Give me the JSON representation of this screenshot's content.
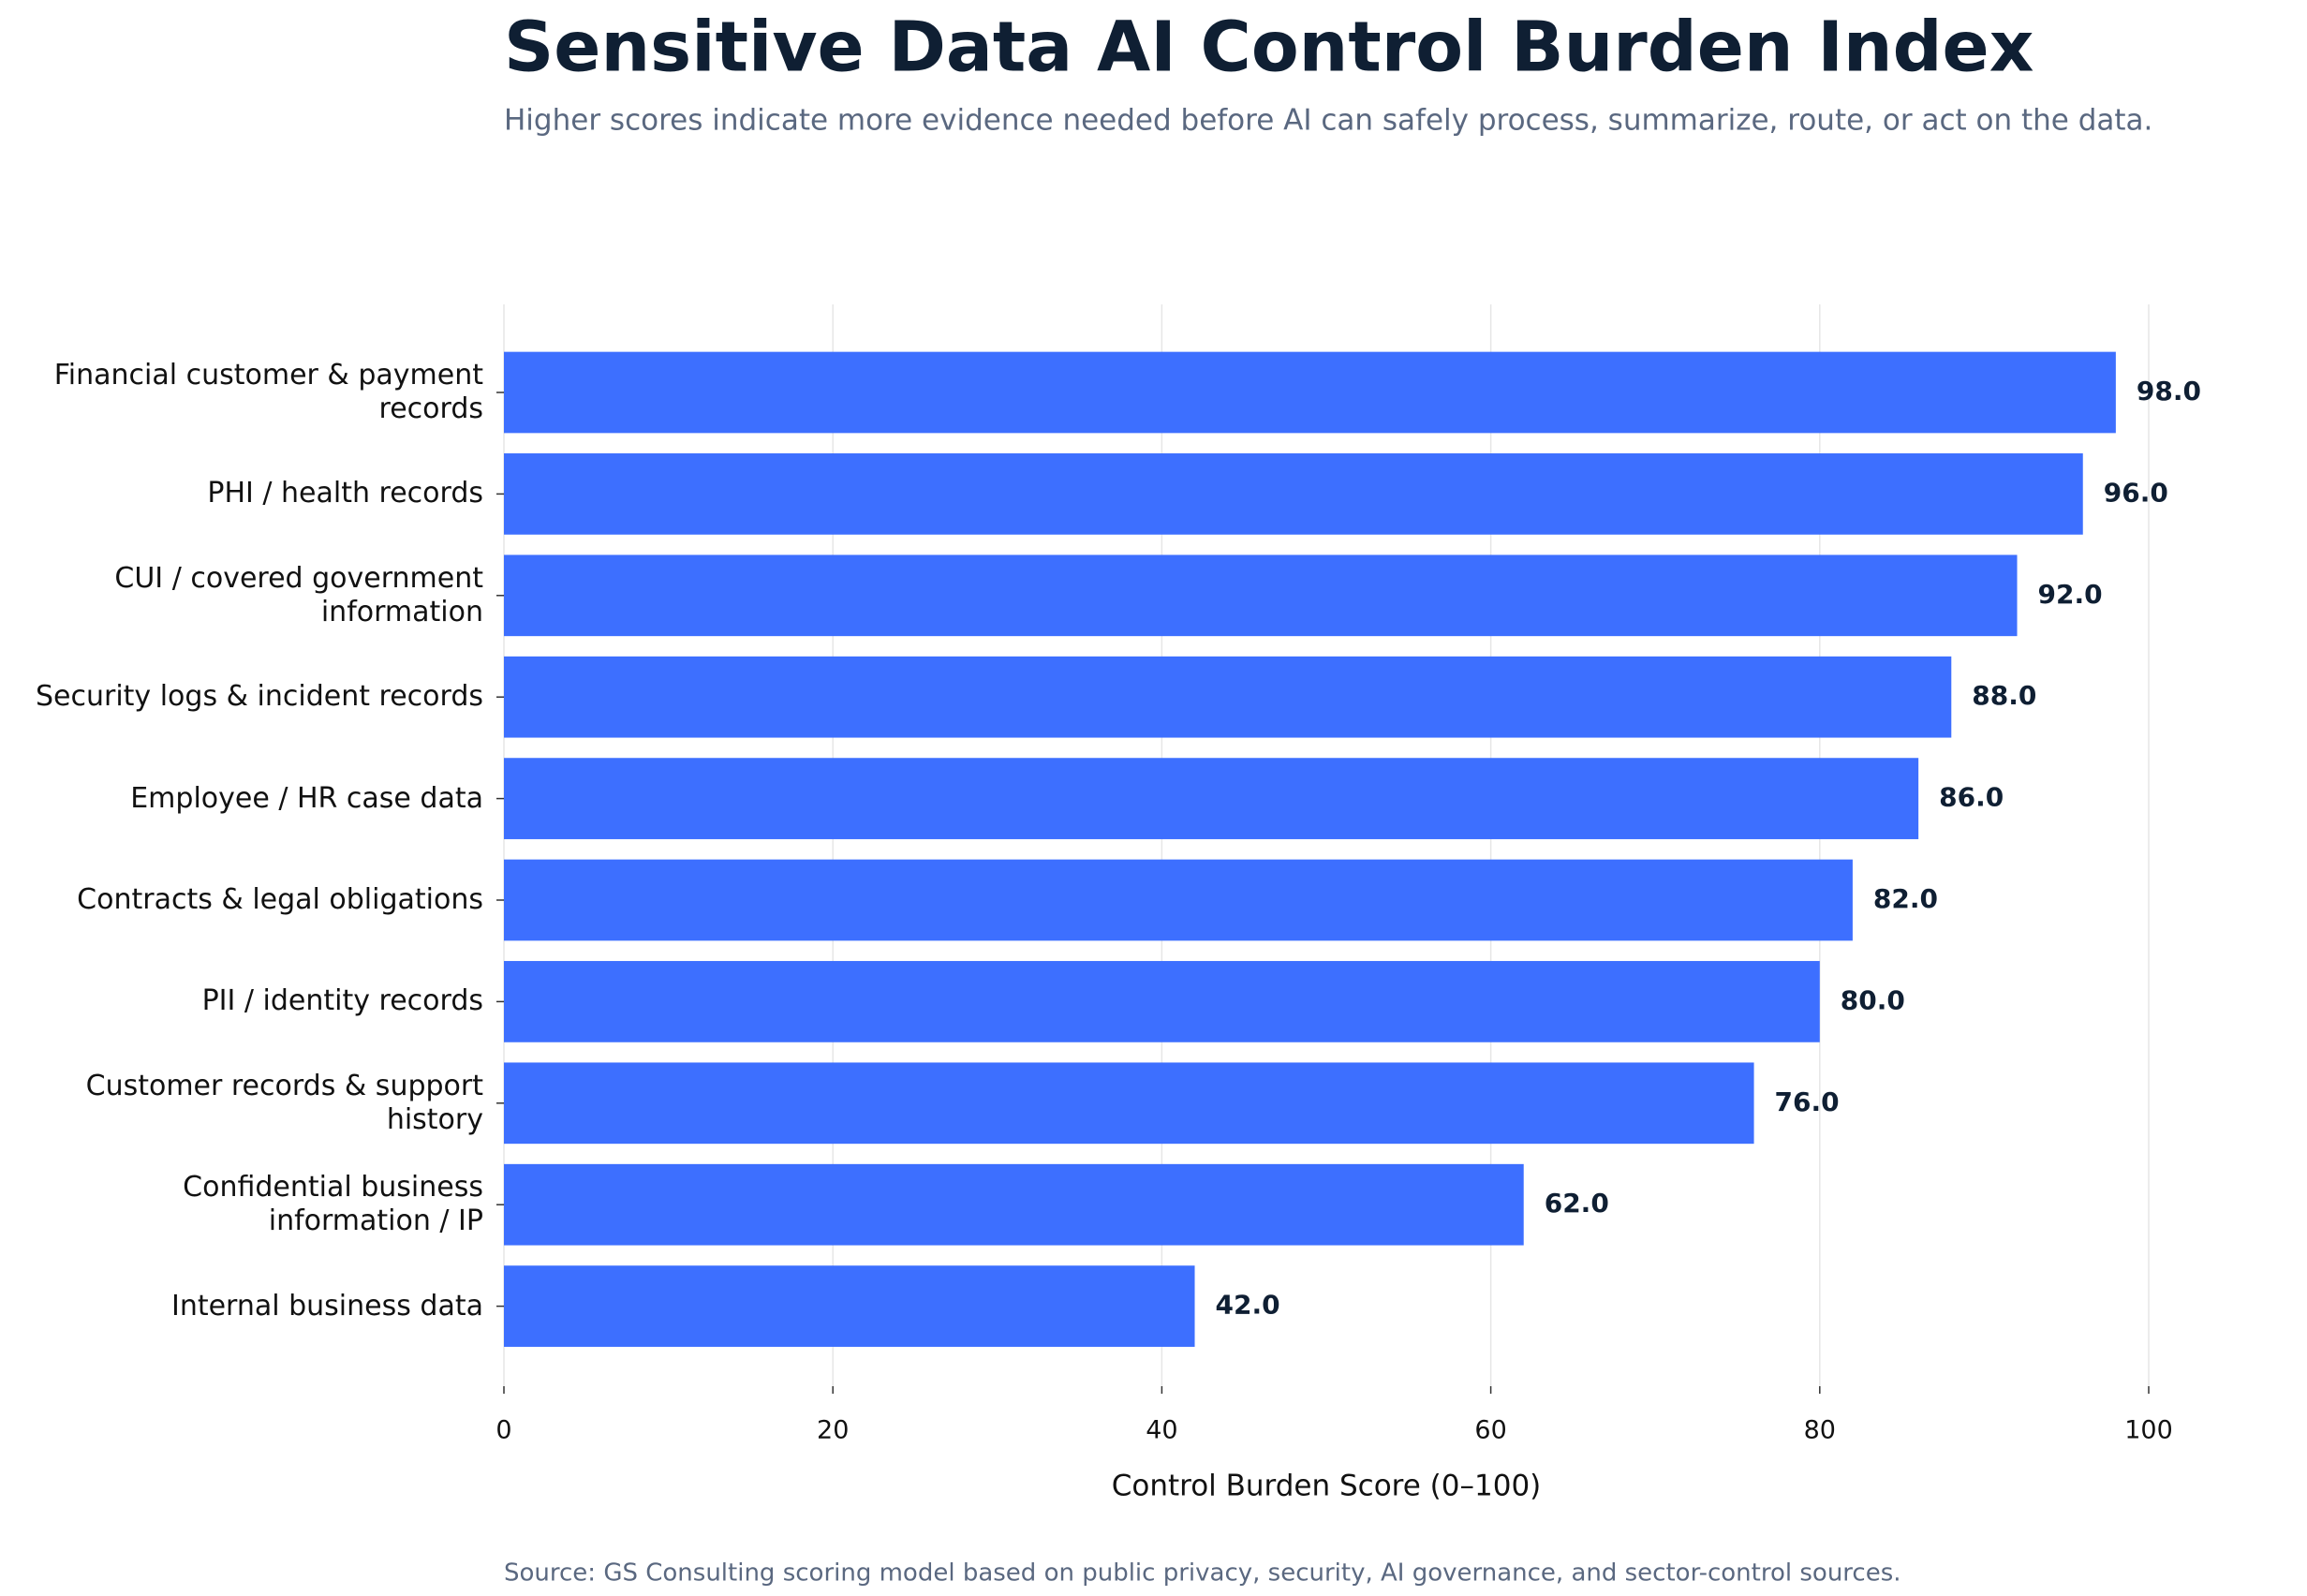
{
  "chart_data": {
    "type": "barh",
    "title": "Sensitive Data AI Control Burden Index",
    "subtitle": "Higher scores indicate more evidence needed before AI can safely process, summarize, route, or act on the data.",
    "x_label": "Control Burden Score (0–100)",
    "source": "Source: GS Consulting scoring model based on public privacy, security, AI governance, and sector-control sources.",
    "categories": [
      "Financial customer & payment records",
      "PHI / health records",
      "CUI / covered government information",
      "Security logs & incident records",
      "Employee / HR case data",
      "Contracts & legal obligations",
      "PII / identity records",
      "Customer records & support history",
      "Confidential business information / IP",
      "Internal business data"
    ],
    "values": [
      98,
      96,
      92,
      88,
      86,
      82,
      80,
      76,
      62,
      42
    ],
    "value_labels": [
      "98.0",
      "96.0",
      "92.0",
      "88.0",
      "86.0",
      "82.0",
      "80.0",
      "76.0",
      "62.0",
      "42.0"
    ],
    "color": "#3d6fff",
    "xlim": [
      0,
      100
    ],
    "xticks": [
      0,
      20,
      40,
      60,
      80,
      100
    ],
    "grid": true
  }
}
